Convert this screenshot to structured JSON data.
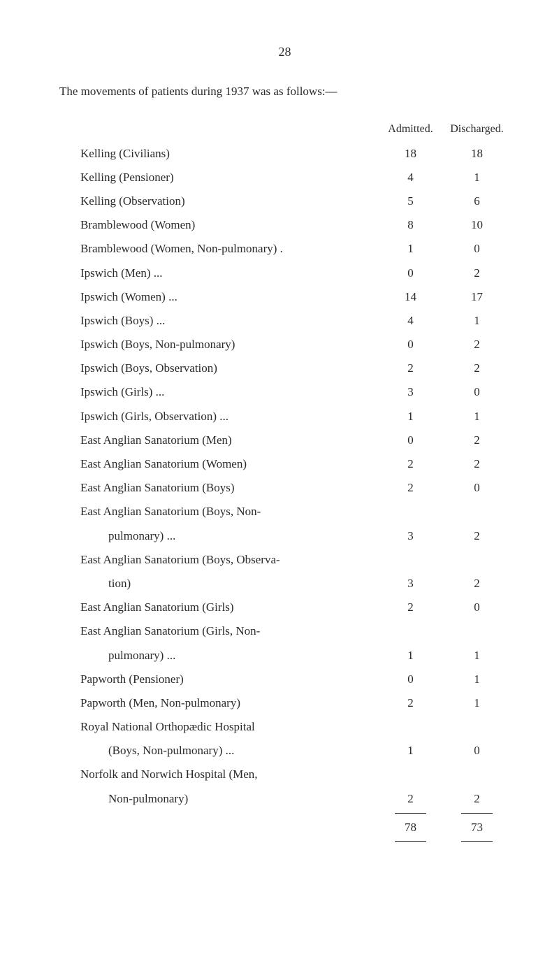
{
  "pageNumber": "28",
  "introText": "The movements of patients during 1937 was as follows:—",
  "columnHeaders": {
    "admitted": "Admitted.",
    "discharged": "Discharged."
  },
  "rows": [
    {
      "label": "Kelling (Civilians)",
      "admitted": "18",
      "discharged": "18",
      "indent": false
    },
    {
      "label": "Kelling (Pensioner)",
      "admitted": "4",
      "discharged": "1",
      "indent": false
    },
    {
      "label": "Kelling (Observation)",
      "admitted": "5",
      "discharged": "6",
      "indent": false
    },
    {
      "label": "Bramblewood (Women)",
      "admitted": "8",
      "discharged": "10",
      "indent": false
    },
    {
      "label": "Bramblewood (Women, Non-pulmonary) .",
      "admitted": "1",
      "discharged": "0",
      "indent": false
    },
    {
      "label": "Ipswich (Men)     ...",
      "admitted": "0",
      "discharged": "2",
      "indent": false
    },
    {
      "label": "Ipswich (Women) ...",
      "admitted": "14",
      "discharged": "17",
      "indent": false
    },
    {
      "label": "Ipswich (Boys)    ...",
      "admitted": "4",
      "discharged": "1",
      "indent": false
    },
    {
      "label": "Ipswich (Boys, Non-pulmonary)",
      "admitted": "0",
      "discharged": "2",
      "indent": false
    },
    {
      "label": "Ipswich (Boys, Observation)",
      "admitted": "2",
      "discharged": "2",
      "indent": false
    },
    {
      "label": "Ipswich (Girls)    ...",
      "admitted": "3",
      "discharged": "0",
      "indent": false
    },
    {
      "label": "Ipswich (Girls, Observation) ...",
      "admitted": "1",
      "discharged": "1",
      "indent": false
    },
    {
      "label": "East Anglian Sanatorium (Men)",
      "admitted": "0",
      "discharged": "2",
      "indent": false
    },
    {
      "label": "East Anglian Sanatorium (Women)",
      "admitted": "2",
      "discharged": "2",
      "indent": false
    },
    {
      "label": "East Anglian Sanatorium (Boys)",
      "admitted": "2",
      "discharged": "0",
      "indent": false
    },
    {
      "label": "East Anglian Sanatorium (Boys, Non-",
      "admitted": "",
      "discharged": "",
      "indent": false
    },
    {
      "label": "pulmonary)      ...",
      "admitted": "3",
      "discharged": "2",
      "indent": true
    },
    {
      "label": "East Anglian Sanatorium (Boys, Observa-",
      "admitted": "",
      "discharged": "",
      "indent": false
    },
    {
      "label": "tion)",
      "admitted": "3",
      "discharged": "2",
      "indent": true
    },
    {
      "label": "East Anglian Sanatorium (Girls)",
      "admitted": "2",
      "discharged": "0",
      "indent": false
    },
    {
      "label": "East Anglian Sanatorium (Girls, Non-",
      "admitted": "",
      "discharged": "",
      "indent": false
    },
    {
      "label": "pulmonary)      ...",
      "admitted": "1",
      "discharged": "1",
      "indent": true
    },
    {
      "label": "Papworth (Pensioner)",
      "admitted": "0",
      "discharged": "1",
      "indent": false
    },
    {
      "label": "Papworth (Men, Non-pulmonary)",
      "admitted": "2",
      "discharged": "1",
      "indent": false
    },
    {
      "label": "Royal National Orthopædic Hospital",
      "admitted": "",
      "discharged": "",
      "indent": false
    },
    {
      "label": "(Boys, Non-pulmonary)   ...",
      "admitted": "1",
      "discharged": "0",
      "indent": true
    },
    {
      "label": "Norfolk and Norwich Hospital (Men,",
      "admitted": "",
      "discharged": "",
      "indent": false
    },
    {
      "label": "Non-pulmonary)",
      "admitted": "2",
      "discharged": "2",
      "indent": true
    }
  ],
  "totals": {
    "admitted": "78",
    "discharged": "73"
  },
  "cornerMark": ""
}
